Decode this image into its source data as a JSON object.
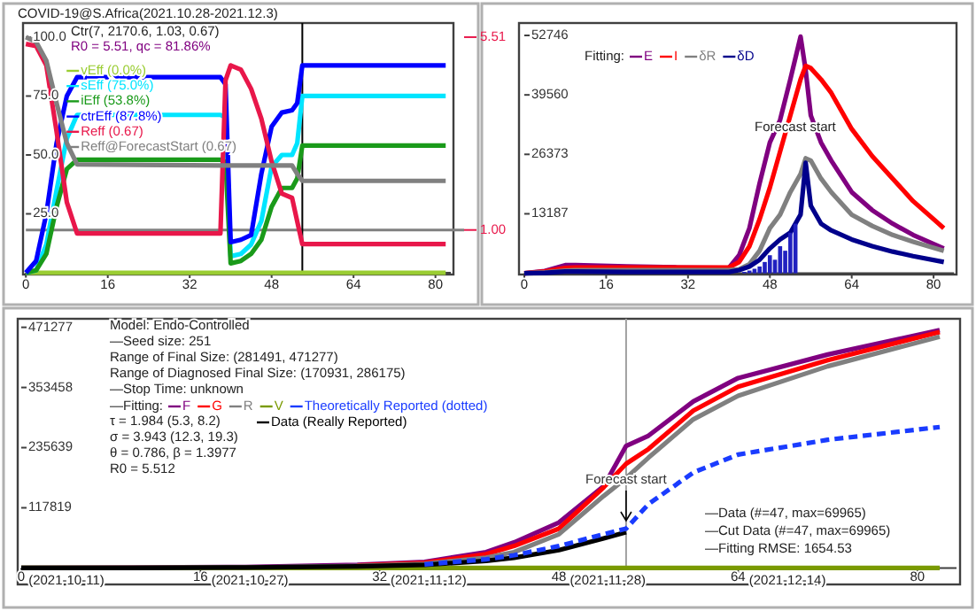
{
  "chart_data": [
    {
      "type": "line",
      "title": "COVID-19@S.Africa(2021.10.28-2021.12.3)",
      "xlim": [
        0,
        83
      ],
      "xticks": [
        0,
        16,
        32,
        48,
        64,
        80
      ],
      "ylim": [
        0,
        106
      ],
      "yticks": [
        {
          "value": 25,
          "label": "25.0"
        },
        {
          "value": 50,
          "label": "50.0"
        },
        {
          "value": 75,
          "label": "75.0"
        },
        {
          "value": 100,
          "label": "100.0"
        }
      ],
      "y2lim": [
        0,
        5.84
      ],
      "y2ticks": [
        {
          "value": 1,
          "label": "1.00"
        },
        {
          "value": 5.51,
          "label": "5.51"
        }
      ],
      "legend": "top left",
      "annotations": [
        "Ctr(7, 2170.6, 1.03, 0.67)",
        "R0 = 5.51, qc = 81.86%"
      ],
      "ref_lines": [
        {
          "axis": "y2",
          "value": 1,
          "color": "#808080"
        },
        {
          "axis": "x",
          "value": 54,
          "color": "#000000"
        }
      ],
      "series": [
        {
          "name": "vEff (0.0%)",
          "color": "#9acd32",
          "x": [
            0,
            2,
            4,
            6,
            8,
            10,
            38,
            39,
            40,
            42,
            44,
            46,
            48,
            50,
            52,
            53,
            54,
            82
          ],
          "values": [
            0,
            0,
            0,
            0,
            0,
            0,
            0,
            0,
            0,
            0,
            0,
            0,
            0,
            0,
            0,
            0,
            0,
            0
          ]
        },
        {
          "name": "sEff (75.0%)",
          "color": "#00e5ff",
          "x": [
            0,
            2,
            4,
            6,
            8,
            10,
            38,
            39,
            40,
            42,
            44,
            46,
            48,
            50,
            52,
            53,
            54,
            82
          ],
          "values": [
            0,
            1,
            12,
            35,
            57,
            67,
            67,
            66,
            7,
            8,
            12,
            22,
            45,
            50,
            50,
            55,
            75,
            75
          ]
        },
        {
          "name": "iEff (53.8%)",
          "color": "#1a9a1a",
          "x": [
            0,
            2,
            4,
            6,
            8,
            10,
            38,
            39,
            40,
            42,
            44,
            46,
            48,
            50,
            52,
            53,
            54,
            82
          ],
          "values": [
            0,
            1,
            8,
            28,
            44,
            48,
            48,
            47,
            4,
            5,
            8,
            14,
            28,
            36,
            36,
            40,
            54,
            54
          ]
        },
        {
          "name": "ctrEff (87.8%)",
          "color": "#0000ff",
          "x": [
            0,
            2,
            4,
            6,
            8,
            10,
            38,
            39,
            40,
            42,
            44,
            46,
            48,
            50,
            52,
            53,
            54,
            82
          ],
          "values": [
            0,
            5,
            25,
            55,
            75,
            83,
            83,
            80,
            13,
            14,
            16,
            42,
            62,
            68,
            69,
            72,
            88,
            88
          ]
        },
        {
          "name": "Reff (0.67)",
          "color": "#e8174a",
          "axis": "y2",
          "x": [
            0,
            2,
            4,
            6,
            8,
            10,
            38,
            39,
            40,
            42,
            44,
            46,
            48,
            50,
            52,
            53,
            54,
            82
          ],
          "values": [
            5.35,
            5.3,
            4.85,
            3.3,
            1.65,
            0.92,
            0.92,
            4.5,
            4.85,
            4.75,
            4.3,
            3.6,
            2.6,
            1.85,
            1.75,
            1.2,
            0.67,
            0.67
          ]
        },
        {
          "name": "Reff@ForecastStart (0.67)",
          "color": "#808080",
          "x": [
            0,
            2,
            4,
            6,
            8,
            10,
            38,
            39,
            40,
            42,
            44,
            46,
            48,
            50,
            52,
            53,
            54,
            82
          ],
          "values": [
            100,
            98,
            90,
            72,
            55,
            46,
            45.5,
            45.5,
            45.5,
            45.5,
            45.5,
            45.5,
            45.5,
            45.5,
            45.5,
            42,
            39,
            39
          ]
        }
      ]
    },
    {
      "type": "line",
      "xlim": [
        0,
        84
      ],
      "xticks": [
        0,
        16,
        32,
        48,
        64,
        80
      ],
      "ylim": [
        0,
        55500
      ],
      "yticks": [
        13187,
        26373,
        39560,
        52746
      ],
      "legend": "top left",
      "legend_title": "Fitting:",
      "annotations": [
        "Forecast start"
      ],
      "series": [
        {
          "name": "E",
          "color": "#800080",
          "x": [
            0,
            4,
            8,
            10,
            20,
            30,
            40,
            42,
            44,
            46,
            48,
            50,
            52,
            54,
            55,
            56,
            58,
            60,
            64,
            68,
            72,
            76,
            82
          ],
          "values": [
            0,
            500,
            1800,
            1800,
            1500,
            1300,
            1200,
            4000,
            10000,
            20000,
            29000,
            34000,
            43000,
            52500,
            45000,
            35000,
            29000,
            25000,
            18000,
            14000,
            11000,
            8500,
            5500
          ]
        },
        {
          "name": "I",
          "color": "#ff0000",
          "x": [
            0,
            4,
            8,
            10,
            20,
            30,
            40,
            42,
            44,
            46,
            48,
            50,
            52,
            54,
            55,
            56,
            58,
            60,
            64,
            68,
            72,
            76,
            82
          ],
          "values": [
            0,
            400,
            1200,
            1300,
            1300,
            1300,
            1300,
            2500,
            6000,
            12000,
            19000,
            27000,
            35000,
            43000,
            46000,
            45500,
            43000,
            40000,
            32000,
            26000,
            21000,
            16000,
            10000
          ]
        },
        {
          "name": "δR",
          "color": "#808080",
          "x": [
            0,
            4,
            8,
            10,
            20,
            30,
            40,
            42,
            44,
            46,
            48,
            50,
            52,
            54,
            55,
            56,
            58,
            60,
            64,
            68,
            72,
            76,
            82
          ],
          "values": [
            0,
            200,
            600,
            700,
            700,
            700,
            700,
            900,
            2000,
            5000,
            10000,
            13000,
            18000,
            22000,
            25500,
            25000,
            21000,
            18000,
            13000,
            10500,
            8500,
            7000,
            5000
          ]
        },
        {
          "name": "δD",
          "color": "#00008b",
          "x": [
            0,
            4,
            8,
            10,
            20,
            30,
            40,
            42,
            44,
            46,
            48,
            50,
            52,
            54,
            55,
            56,
            58,
            60,
            64,
            68,
            72,
            76,
            82
          ],
          "values": [
            0,
            100,
            400,
            400,
            300,
            300,
            300,
            700,
            1500,
            3000,
            5500,
            7500,
            9000,
            13000,
            24500,
            15000,
            11000,
            9500,
            7500,
            6000,
            4800,
            3800,
            2500
          ]
        },
        {
          "type": "bar",
          "color": "#2020c0",
          "x": [
            43,
            44,
            45,
            46,
            47,
            48,
            49,
            50,
            51,
            52,
            53
          ],
          "values": [
            300,
            600,
            1000,
            1500,
            2500,
            4000,
            3000,
            6000,
            5000,
            9000,
            11000
          ]
        }
      ]
    },
    {
      "type": "line",
      "xlim": [
        0,
        83.5
      ],
      "xticks": [
        0,
        16,
        32,
        48,
        64,
        80
      ],
      "ylim": [
        0,
        488000
      ],
      "yticks": [
        117819,
        235639,
        353458,
        471277
      ],
      "legend": "top left",
      "legend_title": "—Fitting:",
      "ref_lines": [
        {
          "axis": "x",
          "value": 54,
          "label": "Forecast start",
          "color": "#a0a0a0"
        }
      ],
      "annotations": [
        "Model: Endo-Controlled",
        "—Seed size: 251",
        "Range of Final Size: (281491, 471277)",
        "Range of Diagnosed Final Size: (170931, 286175)",
        "—Stop Time: unknown",
        "τ = 1.984 (5.3, 8.2)",
        "σ = 3.943 (12.3, 19.3)",
        "θ = 0.786, β = 1.3977",
        "R0 = 5.512",
        "—Data (#=47, max=69965)",
        "—Cut Data (#=47, max=69965)",
        "—Fitting RMSE: 1654.53",
        "(2021-10-11)",
        "(2021-10-27)",
        "(2021-11-12)",
        "(2021-11-28)",
        "(2021-12-14)"
      ],
      "series": [
        {
          "name": "F",
          "color": "#800080",
          "x": [
            0,
            10,
            20,
            30,
            36,
            41.5,
            44,
            48,
            52,
            54,
            56,
            60,
            64,
            72,
            82
          ],
          "values": [
            0,
            1000,
            2000,
            6000,
            12000,
            31000,
            50000,
            89000,
            160000,
            239000,
            259000,
            326000,
            372000,
            418000,
            466000
          ]
        },
        {
          "name": "G",
          "color": "#ff0000",
          "x": [
            30,
            36,
            41.5,
            44,
            48,
            52,
            54,
            56,
            60,
            64,
            72,
            82
          ],
          "values": [
            5000,
            10000,
            27000,
            43000,
            77000,
            158000,
            204000,
            233000,
            308000,
            355000,
            407000,
            462000
          ]
        },
        {
          "name": "R",
          "color": "#808080",
          "x": [
            0,
            10,
            20,
            30,
            36,
            41.5,
            44,
            48,
            52,
            54,
            56,
            60,
            64,
            72,
            82
          ],
          "values": [
            0,
            0,
            1000,
            4000,
            8000,
            20000,
            31000,
            66000,
            141000,
            176000,
            216000,
            291000,
            337000,
            395000,
            453000
          ]
        },
        {
          "name": "V",
          "color": "#7a9a01",
          "x": [
            0,
            10,
            20,
            30,
            36,
            41.5,
            44,
            48,
            52,
            54,
            56,
            60,
            64,
            72,
            82
          ],
          "values": [
            0,
            0,
            0,
            0,
            0,
            0,
            0,
            0,
            0,
            0,
            0,
            0,
            0,
            0,
            0
          ]
        },
        {
          "name": "Theoretically Reported (dotted)",
          "color": "#1a3cff",
          "line_style": "dashed",
          "x": [
            36,
            41.5,
            44,
            48,
            52,
            54,
            56,
            60,
            64,
            72,
            82
          ],
          "values": [
            7000,
            17000,
            25000,
            43000,
            66000,
            77000,
            125000,
            187000,
            222000,
            251000,
            276000
          ]
        },
        {
          "name": "Data (Really Reported)",
          "color": "#000000",
          "x": [
            0,
            10,
            20,
            30,
            36,
            41.5,
            44,
            48,
            52,
            54
          ],
          "values": [
            0,
            0,
            1000,
            3000,
            6000,
            14000,
            20000,
            35000,
            58000,
            69965
          ]
        }
      ]
    }
  ]
}
